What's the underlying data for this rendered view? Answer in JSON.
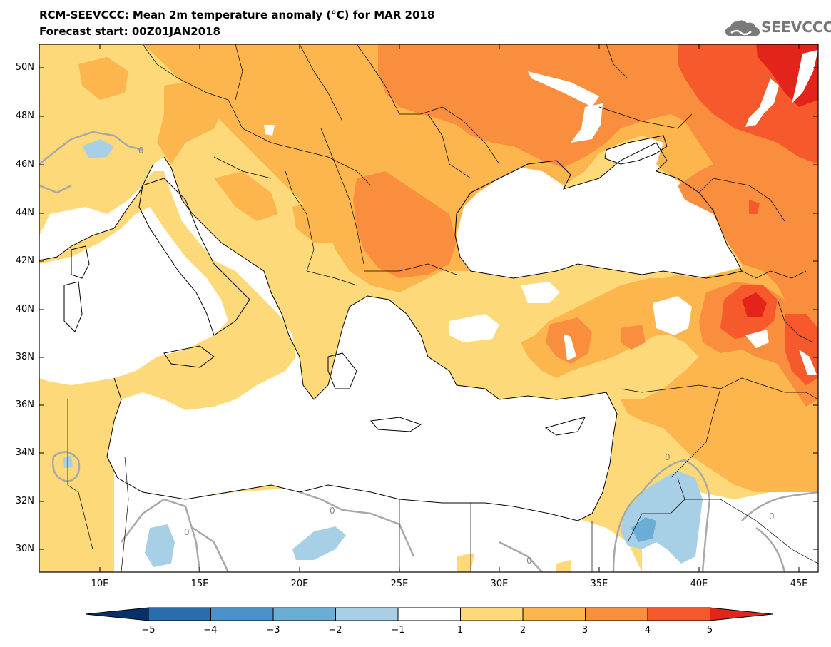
{
  "header": {
    "title": "RCM-SEEVCCC: Mean 2m temperature anomaly (°C) for MAR 2018",
    "subtitle": "Forecast start: 00Z01JAN2018",
    "logo_text": "SEEVCCC"
  },
  "map": {
    "y_labels": [
      "50N",
      "48N",
      "46N",
      "44N",
      "42N",
      "40N",
      "38N",
      "36N",
      "34N",
      "32N",
      "30N"
    ],
    "x_labels": [
      "10E",
      "15E",
      "20E",
      "25E",
      "30E",
      "35E",
      "40E",
      "45E"
    ],
    "contour_label": "0",
    "colors": {
      "ocean": "#ffffff",
      "level_1_2": "#fdd979",
      "level_2_3": "#fcb64d",
      "level_3_4": "#f98f3e",
      "level_4_5": "#f65a2c",
      "level_gt5": "#e3241b",
      "level_m1_m2": "#a7cfe6",
      "level_m2_m3": "#6aaed6",
      "contour": "#a8a8a8",
      "coast": "#000000"
    }
  },
  "colorbar": {
    "labels": [
      "−5",
      "−4",
      "−3",
      "−2",
      "−1",
      "1",
      "2",
      "3",
      "4",
      "5"
    ],
    "colors": [
      "#08306b",
      "#2b6cad",
      "#4a90c9",
      "#6aaed6",
      "#a7cfe6",
      "#ffffff",
      "#fdd979",
      "#fcb64d",
      "#f98f3e",
      "#f65a2c",
      "#e3241b"
    ]
  }
}
